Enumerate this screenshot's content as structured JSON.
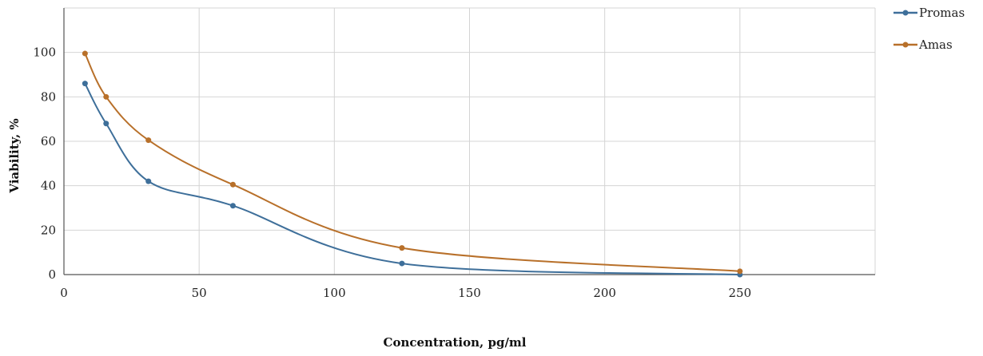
{
  "chart_data": {
    "type": "line",
    "xlabel": "Concentration, pg/ml",
    "ylabel": "Viability, %",
    "xlim": [
      0,
      300
    ],
    "ylim": [
      0,
      120
    ],
    "x_ticks": [
      0,
      50,
      100,
      150,
      200,
      250
    ],
    "y_ticks": [
      0,
      20,
      40,
      60,
      80,
      100
    ],
    "grid": true,
    "legend_position": "top-right",
    "series": [
      {
        "name": "Promas",
        "color": "#3e6f9a",
        "x": [
          7.8,
          15.6,
          31.25,
          62.5,
          125,
          250
        ],
        "y": [
          86,
          68,
          42,
          31,
          5,
          0
        ]
      },
      {
        "name": "Amas",
        "color": "#b8702a",
        "x": [
          7.8,
          15.6,
          31.25,
          62.5,
          125,
          250
        ],
        "y": [
          99.5,
          80,
          60.5,
          40.5,
          12,
          1.5
        ]
      }
    ]
  }
}
